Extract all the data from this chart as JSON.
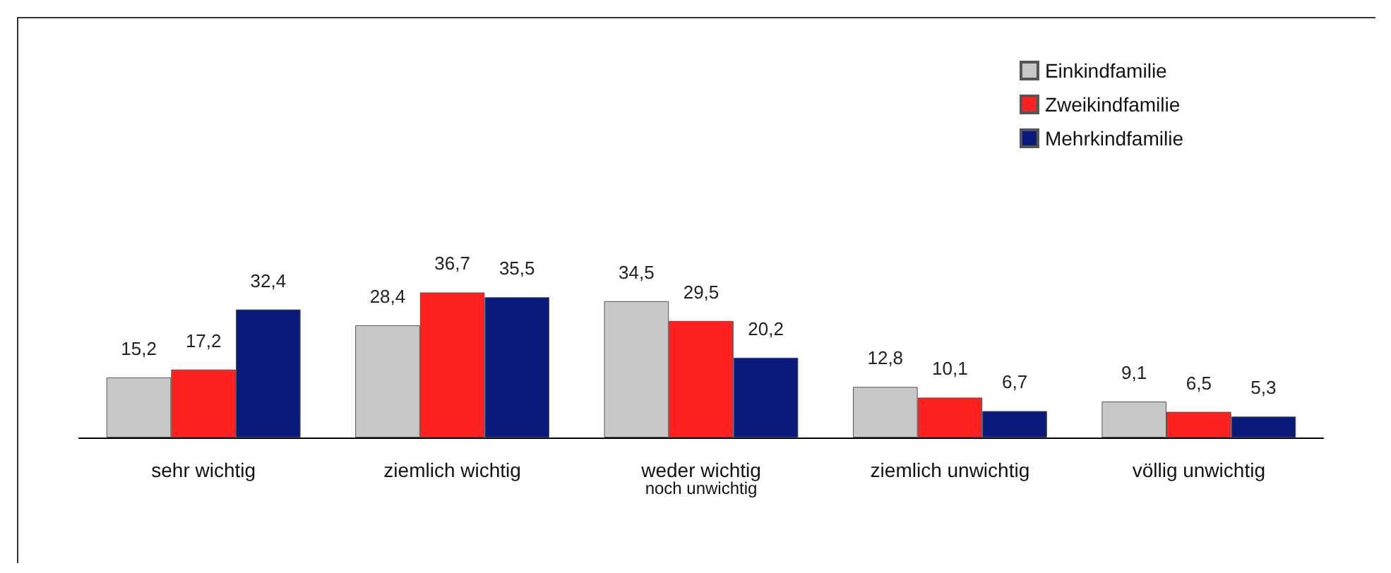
{
  "chart_data": {
    "type": "bar",
    "categories": [
      "sehr wichtig",
      "ziemlich wichtig",
      "weder wichtig\nnoch unwichtig",
      "ziemlich unwichtig",
      "völlig unwichtig"
    ],
    "series": [
      {
        "name": "Einkindfamilie",
        "color": "#c8c8c8",
        "values": [
          15.2,
          28.4,
          34.5,
          12.8,
          9.1
        ],
        "value_labels": [
          "15,2",
          "28,4",
          "34,5",
          "12,8",
          "9,1"
        ]
      },
      {
        "name": "Zweikindfamilie",
        "color": "#ff2020",
        "values": [
          17.2,
          36.7,
          29.5,
          10.1,
          6.5
        ],
        "value_labels": [
          "17,2",
          "36,7",
          "29,5",
          "10,1",
          "6,5"
        ]
      },
      {
        "name": "Mehrkindfamilie",
        "color": "#0a1a7a",
        "values": [
          32.4,
          35.5,
          20.2,
          6.7,
          5.3
        ],
        "value_labels": [
          "32,4",
          "35,5",
          "20,2",
          "6,7",
          "5,3"
        ]
      }
    ],
    "legend": "top right"
  }
}
